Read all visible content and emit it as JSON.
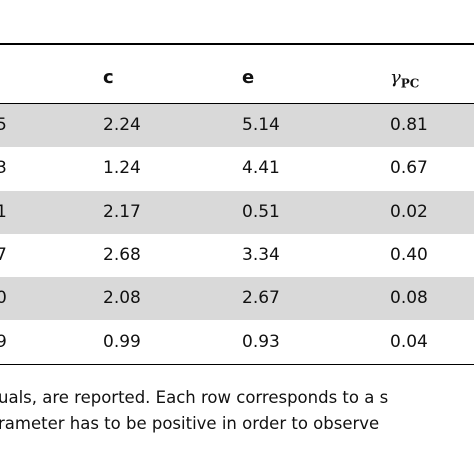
{
  "table": {
    "header": {
      "c": "c",
      "e": "e",
      "gamma": "γ",
      "gamma_sub": "PC"
    },
    "rows": [
      [
        "5",
        "2.24",
        "5.14",
        "0.81"
      ],
      [
        "3",
        "1.24",
        "4.41",
        "0.67"
      ],
      [
        "1",
        "2.17",
        "0.51",
        "0.02"
      ],
      [
        "7",
        "2.68",
        "3.34",
        "0.40"
      ],
      [
        "0",
        "2.08",
        "2.67",
        "0.08"
      ],
      [
        "9",
        "0.99",
        "0.93",
        "0.04"
      ]
    ]
  },
  "footnote": [
    "uals, are reported. Each row corresponds to a s",
    "rameter has to be positive in order to observe"
  ]
}
